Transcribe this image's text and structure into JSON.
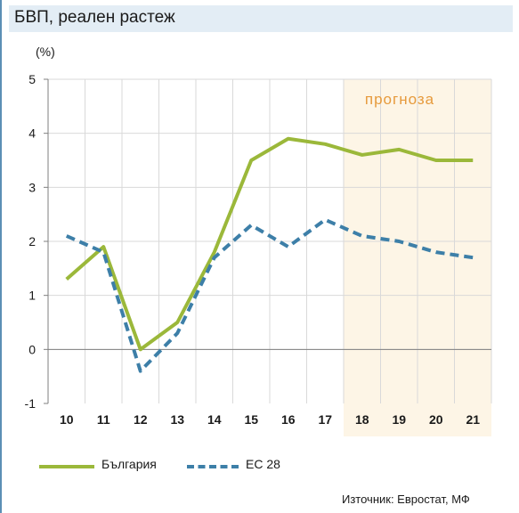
{
  "title": "БВП, реален растеж",
  "source": "Източник: Евростат, МФ",
  "chart_data": {
    "type": "line",
    "ylabel": "(%)",
    "ylim": [
      -1,
      5
    ],
    "yticks": [
      "5",
      "4",
      "3",
      "2",
      "1",
      "0",
      "-1"
    ],
    "categories": [
      "10",
      "11",
      "12",
      "13",
      "14",
      "15",
      "16",
      "17",
      "18",
      "19",
      "20",
      "21"
    ],
    "forecast_label": "прогноза",
    "forecast_start": "18",
    "forecast_color": "#fdf5e6",
    "series": [
      {
        "name": "България",
        "color": "#9bb83a",
        "style": "solid",
        "values": [
          1.3,
          1.9,
          0.0,
          0.5,
          1.8,
          3.5,
          3.9,
          3.8,
          3.6,
          3.7,
          3.5,
          3.5
        ]
      },
      {
        "name": "ЕС 28",
        "color": "#3d7fa8",
        "style": "dashed",
        "values": [
          2.1,
          1.8,
          -0.4,
          0.3,
          1.7,
          2.3,
          1.9,
          2.4,
          2.1,
          2.0,
          1.8,
          1.7
        ]
      }
    ],
    "grid": true,
    "legend_position": "bottom-left"
  }
}
